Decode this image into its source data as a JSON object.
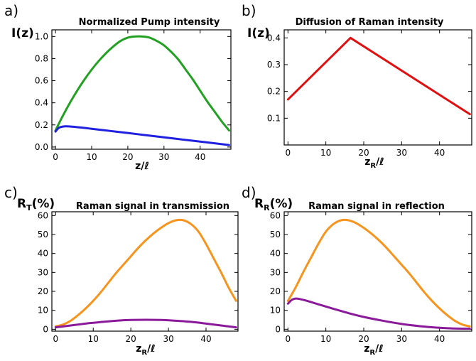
{
  "chart_data": [
    {
      "panel": "a)",
      "type": "line",
      "title": "Normalized Pump intensity",
      "ylabel": "I(z)",
      "xlabel": "z/ℓ",
      "xlim": [
        -1,
        48.5
      ],
      "ylim": [
        -0.02,
        1.06
      ],
      "xticks": [
        0,
        10,
        20,
        30,
        40
      ],
      "yticks": [
        0.0,
        0.2,
        0.4,
        0.6,
        0.8,
        1.0
      ],
      "yticks_labels": [
        "0.0",
        "0.2",
        "0.4",
        "0.6",
        "0.8",
        "1.0"
      ],
      "grid": false,
      "series": [
        {
          "color": "#22a022",
          "x": [
            0,
            2,
            4,
            6,
            8,
            10,
            12,
            14,
            16,
            18,
            20,
            22,
            24,
            26,
            28,
            30,
            32,
            34,
            36,
            38,
            40,
            42,
            44,
            46,
            48
          ],
          "y": [
            0.15,
            0.28,
            0.4,
            0.51,
            0.61,
            0.7,
            0.78,
            0.85,
            0.91,
            0.96,
            0.99,
            1.0,
            1.0,
            0.99,
            0.96,
            0.92,
            0.86,
            0.79,
            0.7,
            0.61,
            0.51,
            0.41,
            0.32,
            0.23,
            0.15
          ]
        },
        {
          "color": "#2020e0",
          "x": [
            0,
            0.5,
            1,
            2,
            3,
            5,
            10,
            15,
            20,
            25,
            30,
            35,
            40,
            45,
            48
          ],
          "y": [
            0.14,
            0.16,
            0.175,
            0.185,
            0.187,
            0.183,
            0.165,
            0.146,
            0.127,
            0.107,
            0.088,
            0.068,
            0.049,
            0.03,
            0.018
          ]
        }
      ]
    },
    {
      "panel": "b)",
      "type": "line",
      "title": "Diffusion of Raman intensity",
      "ylabel": "I(z)",
      "xlabel_main": "z",
      "xlabel_sub": "R",
      "xlabel_rest": "/ℓ",
      "xlim": [
        -1,
        48.5
      ],
      "ylim": [
        0.0,
        0.43
      ],
      "xticks": [
        0,
        10,
        20,
        30,
        40
      ],
      "yticks": [
        0.1,
        0.2,
        0.3,
        0.4
      ],
      "yticks_labels": [
        "0.1",
        "0.2",
        "0.3",
        "0.4"
      ],
      "grid": false,
      "series": [
        {
          "color": "#e01010",
          "x": [
            0,
            16.5,
            48
          ],
          "y": [
            0.17,
            0.4,
            0.115
          ]
        }
      ]
    },
    {
      "panel": "c)",
      "type": "line",
      "title": "Raman signal in transmission",
      "ylabel_main": "R",
      "ylabel_sub": "T",
      "ylabel_rest": "(%)",
      "xlabel_main": "z",
      "xlabel_sub": "R",
      "xlabel_rest": "/ℓ",
      "xlim": [
        -1,
        48.5
      ],
      "ylim": [
        -1,
        62
      ],
      "xticks": [
        0,
        10,
        20,
        30,
        40
      ],
      "yticks": [
        0,
        10,
        20,
        30,
        40,
        50,
        60
      ],
      "yticks_labels": [
        "0",
        "10",
        "20",
        "30",
        "40",
        "50",
        "60"
      ],
      "grid": false,
      "series": [
        {
          "color": "#f7941d",
          "x": [
            0,
            2,
            4,
            6,
            8,
            10,
            12,
            14,
            16,
            18,
            20,
            22,
            24,
            26,
            28,
            30,
            32,
            34,
            36,
            38,
            40,
            42,
            44,
            46,
            48
          ],
          "y": [
            1.5,
            2.5,
            4.5,
            7.5,
            11,
            15,
            19.5,
            24.5,
            29.5,
            34,
            38.5,
            43,
            47,
            50.5,
            53.5,
            56,
            57.5,
            57.5,
            55.5,
            51.5,
            45,
            37.5,
            30,
            22,
            15
          ]
        },
        {
          "color": "#8b1a9b",
          "x": [
            0,
            4,
            8,
            12,
            16,
            20,
            24,
            28,
            32,
            36,
            40,
            44,
            48
          ],
          "y": [
            1.0,
            2.0,
            3.0,
            3.8,
            4.5,
            4.9,
            5.0,
            4.9,
            4.5,
            3.9,
            3.0,
            2.0,
            1.0
          ]
        }
      ]
    },
    {
      "panel": "d)",
      "type": "line",
      "title": "Raman signal in reflection",
      "ylabel_main": "R",
      "ylabel_sub": "R",
      "ylabel_rest": "(%)",
      "xlabel_main": "z",
      "xlabel_sub": "R",
      "xlabel_rest": "/ℓ",
      "xlim": [
        -1,
        48.5
      ],
      "ylim": [
        -1,
        62
      ],
      "xticks": [
        0,
        10,
        20,
        30,
        40
      ],
      "yticks": [
        0,
        10,
        20,
        30,
        40,
        50,
        60
      ],
      "yticks_labels": [
        "0",
        "10",
        "20",
        "30",
        "40",
        "50",
        "60"
      ],
      "grid": false,
      "series": [
        {
          "color": "#f7941d",
          "x": [
            0,
            2,
            4,
            6,
            8,
            10,
            12,
            14,
            16,
            18,
            20,
            22,
            24,
            26,
            28,
            30,
            32,
            34,
            36,
            38,
            40,
            42,
            44,
            46,
            48
          ],
          "y": [
            15,
            22,
            30,
            37.5,
            45,
            51.5,
            55.5,
            57.5,
            57.5,
            56,
            53.5,
            50.5,
            47,
            43,
            38.5,
            34,
            29.5,
            24.5,
            19.5,
            15,
            11,
            7.5,
            4.5,
            2.5,
            1.5
          ]
        },
        {
          "color": "#8b1a9b",
          "x": [
            0,
            1,
            2,
            3,
            5,
            8,
            12,
            16,
            20,
            25,
            30,
            35,
            40,
            44,
            48
          ],
          "y": [
            13.5,
            15.5,
            16.2,
            16.0,
            15.0,
            13.2,
            10.8,
            8.5,
            6.5,
            4.5,
            2.8,
            1.6,
            0.8,
            0.4,
            0.3
          ]
        }
      ]
    }
  ]
}
